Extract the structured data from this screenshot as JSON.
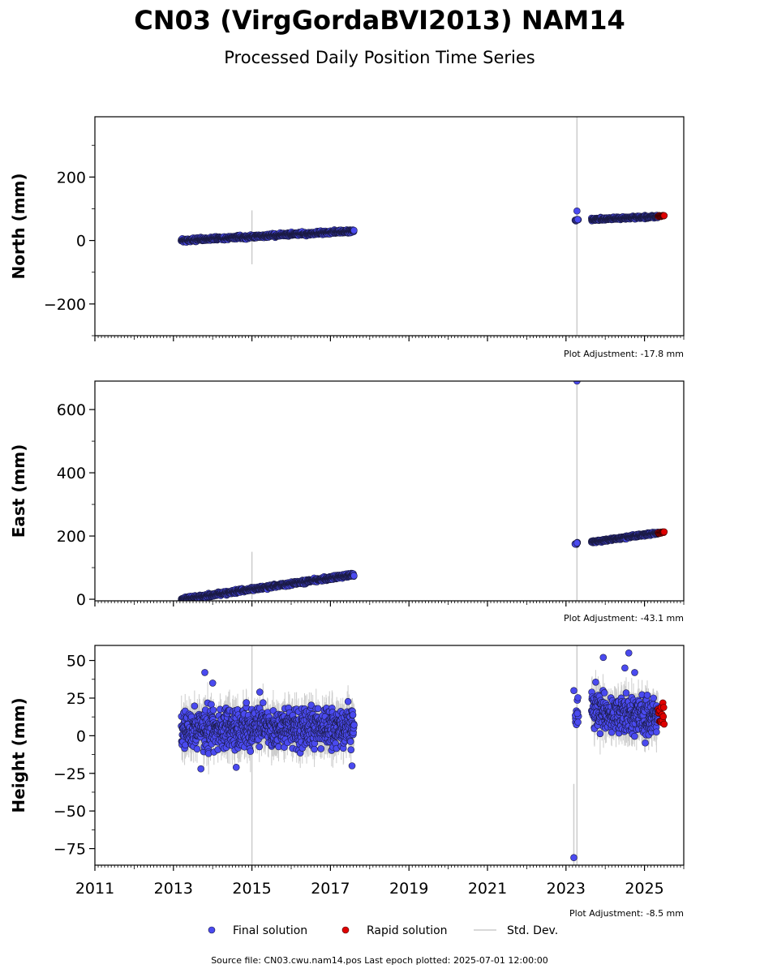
{
  "title": "CN03 (VirgGordaBVI2013) NAM14",
  "subtitle": "Processed Daily Position Time Series",
  "source_line": "Source file: CN03.cwu.nam14.pos  Last epoch plotted: 2025-07-01 12:00:00",
  "legend": {
    "final": "Final solution",
    "rapid": "Rapid solution",
    "std": "Std. Dev."
  },
  "colors": {
    "final": "#4a4af0",
    "rapid": "#e00000",
    "std": "#cccccc",
    "edge": "#1a1a40"
  },
  "chart_data": [
    {
      "type": "scatter",
      "panel": "north",
      "ylabel": "North (mm)",
      "ylim": [
        -300,
        390
      ],
      "yticks": [
        -200,
        0,
        200
      ],
      "ytick_labels": [
        "−200",
        "0",
        "200"
      ],
      "xlim": [
        2011,
        2026
      ],
      "adjustment": "Plot Adjustment: -17.8 mm",
      "segments": [
        {
          "x": [
            2013.2,
            2017.6
          ],
          "y": [
            0,
            30
          ],
          "spread": 4,
          "err": 5
        },
        {
          "x": [
            2023.65,
            2025.35
          ],
          "y": [
            66,
            76
          ],
          "spread": 3,
          "err": 5
        }
      ],
      "cluster": [
        {
          "x": 2023.25,
          "y": 64
        },
        {
          "x": 2023.3,
          "y": 66
        }
      ],
      "rapid": {
        "x": [
          2025.35,
          2025.5
        ],
        "y": [
          76,
          78
        ],
        "spread": 1.5
      },
      "outliers": [
        {
          "x": 2023.28,
          "y": 93
        }
      ],
      "std_spikes": [
        {
          "x": 2015.0,
          "y1": -75,
          "y2": 95
        },
        {
          "x": 2023.28,
          "y1": -300,
          "y2": 390
        }
      ]
    },
    {
      "type": "scatter",
      "panel": "east",
      "ylabel": "East (mm)",
      "ylim": [
        -5,
        690
      ],
      "yticks": [
        0,
        200,
        400,
        600
      ],
      "ytick_labels": [
        "0",
        "200",
        "400",
        "600"
      ],
      "xlim": [
        2011,
        2026
      ],
      "adjustment": "Plot Adjustment: -43.1 mm",
      "segments": [
        {
          "x": [
            2013.2,
            2017.6
          ],
          "y": [
            0,
            78
          ],
          "spread": 4,
          "err": 6
        },
        {
          "x": [
            2023.65,
            2025.35
          ],
          "y": [
            181,
            210
          ],
          "spread": 3,
          "err": 6
        }
      ],
      "cluster": [
        {
          "x": 2023.25,
          "y": 175
        },
        {
          "x": 2023.3,
          "y": 178
        }
      ],
      "rapid": {
        "x": [
          2025.35,
          2025.5
        ],
        "y": [
          209,
          212
        ],
        "spread": 1.5
      },
      "outliers": [
        {
          "x": 2023.28,
          "y": 690
        }
      ],
      "std_spikes": [
        {
          "x": 2015.0,
          "y1": 0,
          "y2": 150
        },
        {
          "x": 2023.28,
          "y1": -5,
          "y2": 690
        }
      ]
    },
    {
      "type": "scatter",
      "panel": "height",
      "ylabel": "Height (mm)",
      "ylim": [
        -86,
        60
      ],
      "yticks": [
        -75,
        -50,
        -25,
        0,
        25,
        50
      ],
      "ytick_labels": [
        "−75",
        "−50",
        "−25",
        "0",
        "25",
        "50"
      ],
      "xlim": [
        2011,
        2026
      ],
      "xticks": [
        2011,
        2013,
        2015,
        2017,
        2019,
        2021,
        2023,
        2025
      ],
      "adjustment": "Plot Adjustment: -8.5 mm",
      "segments": [
        {
          "x": [
            2013.2,
            2017.6
          ],
          "y": [
            5,
            5
          ],
          "spread": 9,
          "err": 10
        },
        {
          "x": [
            2023.65,
            2025.35
          ],
          "y": [
            18,
            12
          ],
          "spread": 9,
          "err": 10
        }
      ],
      "cluster": [
        {
          "x": 2023.25,
          "y": 15
        },
        {
          "x": 2023.3,
          "y": 18
        }
      ],
      "rapid": {
        "x": [
          2025.35,
          2025.5
        ],
        "y": [
          12,
          12
        ],
        "spread": 6
      },
      "outliers": [
        {
          "x": 2013.8,
          "y": 42
        },
        {
          "x": 2014.0,
          "y": 35
        },
        {
          "x": 2015.2,
          "y": 29
        },
        {
          "x": 2023.2,
          "y": -81
        },
        {
          "x": 2023.2,
          "y": 30
        },
        {
          "x": 2023.95,
          "y": 52
        },
        {
          "x": 2024.5,
          "y": 45
        },
        {
          "x": 2024.6,
          "y": 55
        },
        {
          "x": 2024.75,
          "y": 42
        },
        {
          "x": 2013.7,
          "y": -22
        },
        {
          "x": 2014.6,
          "y": -21
        },
        {
          "x": 2017.55,
          "y": -20
        }
      ],
      "std_spikes": [
        {
          "x": 2015.0,
          "y1": -86,
          "y2": 60
        },
        {
          "x": 2023.28,
          "y1": -86,
          "y2": 60
        },
        {
          "x": 2023.2,
          "y1": -86,
          "y2": -32
        }
      ]
    }
  ]
}
